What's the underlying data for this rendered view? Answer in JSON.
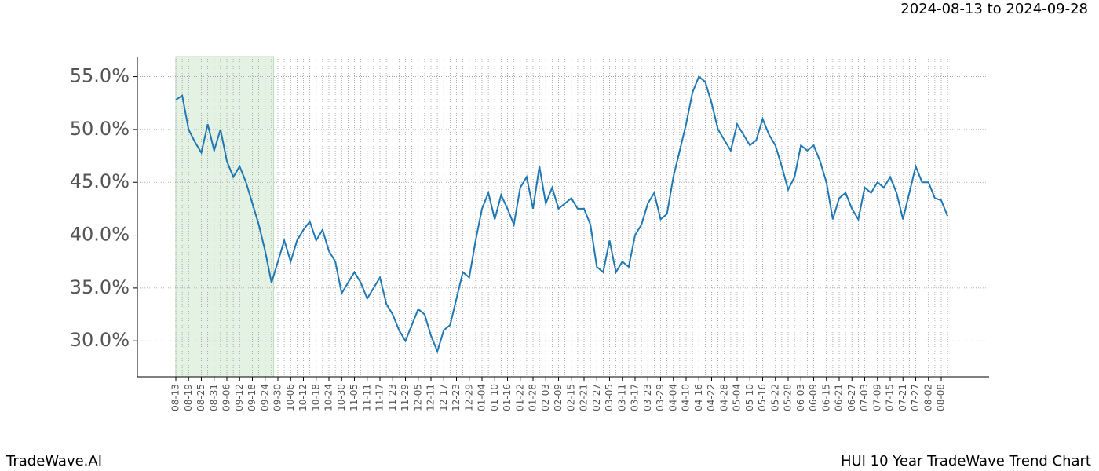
{
  "chart_data": {
    "type": "line",
    "subtitle": "2024-08-13 to 2024-09-28",
    "footer_left": "TradeWave.AI",
    "footer_right": "HUI 10 Year TradeWave Trend Chart",
    "highlight": {
      "start": "2024-08-13",
      "end": "2024-09-28",
      "color": "#e4f2e4"
    },
    "categories": [
      "08-13",
      null,
      "08-19",
      null,
      "08-25",
      null,
      "08-31",
      null,
      "09-06",
      null,
      "09-12",
      null,
      "09-18",
      null,
      "09-24",
      null,
      "09-30",
      null,
      "10-06",
      null,
      "10-12",
      null,
      "10-18",
      null,
      "10-24",
      null,
      "10-30",
      null,
      "11-05",
      null,
      "11-11",
      null,
      "11-17",
      null,
      "11-23",
      null,
      "11-29",
      null,
      "12-05",
      null,
      "12-11",
      null,
      "12-17",
      null,
      "12-23",
      null,
      "12-29",
      null,
      "01-04",
      null,
      "01-10",
      null,
      "01-16",
      null,
      "01-22",
      null,
      "01-28",
      null,
      "02-03",
      null,
      "02-09",
      null,
      "02-15",
      null,
      "02-21",
      null,
      "02-27",
      null,
      "03-05",
      null,
      "03-11",
      null,
      "03-17",
      null,
      "03-23",
      null,
      "03-29",
      null,
      "04-04",
      null,
      "04-10",
      null,
      "04-16",
      null,
      "04-22",
      null,
      "04-28",
      null,
      "05-04",
      null,
      "05-10",
      null,
      "05-16",
      null,
      "05-22",
      null,
      "05-28",
      null,
      "06-03",
      null,
      "06-09",
      null,
      "06-15",
      null,
      "06-21",
      null,
      "06-27",
      null,
      "07-03",
      null,
      "07-09",
      null,
      "07-15",
      null,
      "07-21",
      null,
      "07-27",
      null,
      "08-02",
      null,
      "08-08",
      null
    ],
    "series": [
      {
        "name": "HUI",
        "color": "#1f77b4",
        "values": [
          52.8,
          53.2,
          50.0,
          48.8,
          47.8,
          50.5,
          48.0,
          50.0,
          47.0,
          45.5,
          46.5,
          45.0,
          43.0,
          41.0,
          38.5,
          35.5,
          37.5,
          39.5,
          37.5,
          39.5,
          40.5,
          41.3,
          39.5,
          40.5,
          38.5,
          37.5,
          34.5,
          35.5,
          36.5,
          35.5,
          34.0,
          35.0,
          36.0,
          33.5,
          32.5,
          31.0,
          30.0,
          31.5,
          33.0,
          32.5,
          30.5,
          29.0,
          31.0,
          31.5,
          34.0,
          36.5,
          36.0,
          39.5,
          42.5,
          44.0,
          41.5,
          43.8,
          42.5,
          41.0,
          44.5,
          45.5,
          42.5,
          46.5,
          43.0,
          44.5,
          42.5,
          43.0,
          43.5,
          42.5,
          42.5,
          41.0,
          37.0,
          36.5,
          39.5,
          36.5,
          37.5,
          37.0,
          40.0,
          41.0,
          43.0,
          44.0,
          41.5,
          42.0,
          45.5,
          48.0,
          50.5,
          53.5,
          55.0,
          54.5,
          52.5,
          50.0,
          49.0,
          48.0,
          50.5,
          49.5,
          48.5,
          49.0,
          51.0,
          49.5,
          48.5,
          46.5,
          44.3,
          45.5,
          48.5,
          48.0,
          48.5,
          47.0,
          45.0,
          41.5,
          43.5,
          44.0,
          42.5,
          41.5,
          44.5,
          44.0,
          45.0,
          44.5,
          45.5,
          44.0,
          41.5,
          44.0,
          46.5,
          45.0,
          45.0,
          43.5,
          43.3,
          41.8
        ]
      }
    ],
    "ylim": [
      26.6,
      56.9
    ],
    "yticks": [
      {
        "value": 30,
        "label": "30.0%"
      },
      {
        "value": 35,
        "label": "35.0%"
      },
      {
        "value": 40,
        "label": "40.0%"
      },
      {
        "value": 45,
        "label": "45.0%"
      },
      {
        "value": 50,
        "label": "50.0%"
      },
      {
        "value": 55,
        "label": "55.0%"
      }
    ],
    "grid": true
  }
}
